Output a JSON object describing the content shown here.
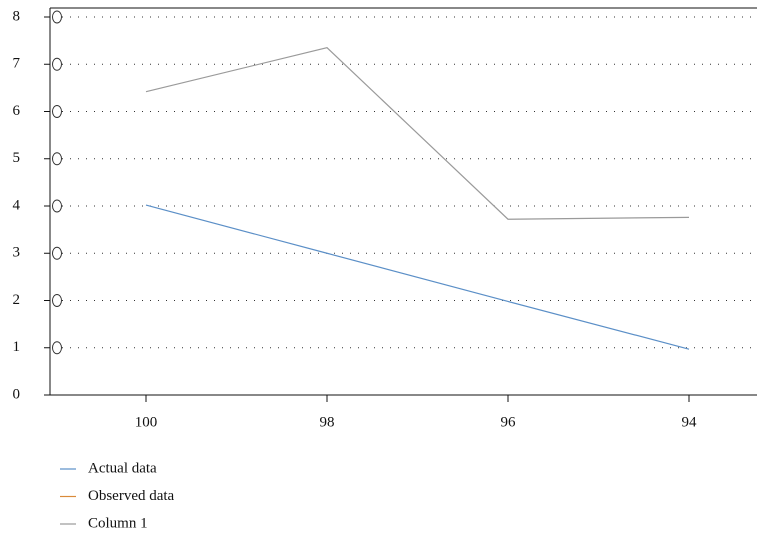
{
  "chart_data": {
    "type": "line",
    "categories": [
      "100",
      "98",
      "96",
      "94"
    ],
    "series": [
      {
        "name": "Actual data",
        "color": "#5b8fc7",
        "values": [
          4.02,
          3.0,
          1.98,
          0.97
        ]
      },
      {
        "name": "Observed data",
        "color": "#d98a3a",
        "values": [
          null,
          null,
          null,
          null
        ]
      },
      {
        "name": "Column 1",
        "color": "#9a9a9a",
        "values": [
          6.42,
          7.35,
          3.72,
          3.76
        ]
      }
    ],
    "ylim": [
      0,
      8
    ],
    "yticks": [
      0,
      1,
      2,
      3,
      4,
      5,
      6,
      7,
      8
    ],
    "grid": true
  }
}
